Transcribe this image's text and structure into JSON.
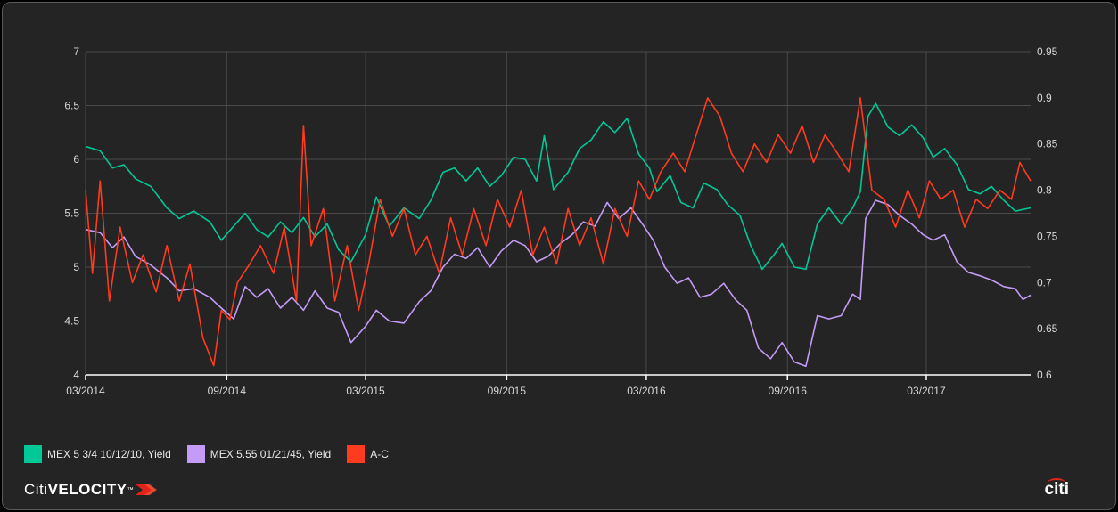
{
  "chart_data": {
    "type": "line",
    "x_ticks": [
      "03/2014",
      "09/2014",
      "03/2015",
      "09/2015",
      "03/2016",
      "09/2016",
      "03/2017"
    ],
    "x_range": [
      "2014-03-01",
      "2017-07-15"
    ],
    "y_left_ticks": [
      "4",
      "4.5",
      "5",
      "5.5",
      "6",
      "6.5",
      "7"
    ],
    "y_right_ticks": [
      "0.6",
      "0.65",
      "0.7",
      "0.75",
      "0.8",
      "0.85",
      "0.9",
      "0.95"
    ],
    "y_left_range": [
      4,
      7
    ],
    "y_right_range": [
      0.6,
      0.95
    ],
    "grid": true,
    "legend_position": "bottom-left",
    "series": [
      {
        "name": "MEX 5 3/4 10/12/10, Yield",
        "axis": "left",
        "color": "#00c896",
        "points": [
          [
            "2014-03-01",
            6.12
          ],
          [
            "2014-03-20",
            6.08
          ],
          [
            "2014-04-05",
            5.92
          ],
          [
            "2014-04-20",
            5.95
          ],
          [
            "2014-05-05",
            5.82
          ],
          [
            "2014-05-25",
            5.75
          ],
          [
            "2014-06-15",
            5.55
          ],
          [
            "2014-07-01",
            5.45
          ],
          [
            "2014-07-20",
            5.52
          ],
          [
            "2014-08-10",
            5.42
          ],
          [
            "2014-08-25",
            5.25
          ],
          [
            "2014-09-10",
            5.38
          ],
          [
            "2014-09-25",
            5.5
          ],
          [
            "2014-10-10",
            5.35
          ],
          [
            "2014-10-25",
            5.28
          ],
          [
            "2014-11-10",
            5.42
          ],
          [
            "2014-11-25",
            5.32
          ],
          [
            "2014-12-10",
            5.46
          ],
          [
            "2014-12-25",
            5.28
          ],
          [
            "2015-01-10",
            5.4
          ],
          [
            "2015-01-25",
            5.16
          ],
          [
            "2015-02-10",
            5.05
          ],
          [
            "2015-03-01",
            5.3
          ],
          [
            "2015-03-15",
            5.65
          ],
          [
            "2015-04-01",
            5.38
          ],
          [
            "2015-04-20",
            5.55
          ],
          [
            "2015-05-10",
            5.45
          ],
          [
            "2015-05-25",
            5.62
          ],
          [
            "2015-06-10",
            5.88
          ],
          [
            "2015-06-25",
            5.92
          ],
          [
            "2015-07-10",
            5.8
          ],
          [
            "2015-07-25",
            5.92
          ],
          [
            "2015-08-10",
            5.75
          ],
          [
            "2015-08-25",
            5.85
          ],
          [
            "2015-09-10",
            6.02
          ],
          [
            "2015-09-25",
            6.0
          ],
          [
            "2015-10-10",
            5.8
          ],
          [
            "2015-10-20",
            6.22
          ],
          [
            "2015-11-01",
            5.72
          ],
          [
            "2015-11-20",
            5.88
          ],
          [
            "2015-12-05",
            6.1
          ],
          [
            "2015-12-20",
            6.18
          ],
          [
            "2016-01-05",
            6.35
          ],
          [
            "2016-01-20",
            6.25
          ],
          [
            "2016-02-05",
            6.38
          ],
          [
            "2016-02-20",
            6.05
          ],
          [
            "2016-03-05",
            5.92
          ],
          [
            "2016-03-15",
            5.7
          ],
          [
            "2016-04-01",
            5.85
          ],
          [
            "2016-04-15",
            5.6
          ],
          [
            "2016-05-01",
            5.55
          ],
          [
            "2016-05-15",
            5.78
          ],
          [
            "2016-06-01",
            5.72
          ],
          [
            "2016-06-15",
            5.58
          ],
          [
            "2016-07-01",
            5.48
          ],
          [
            "2016-07-15",
            5.2
          ],
          [
            "2016-07-30",
            4.98
          ],
          [
            "2016-08-15",
            5.12
          ],
          [
            "2016-08-25",
            5.22
          ],
          [
            "2016-09-10",
            5.0
          ],
          [
            "2016-09-25",
            4.98
          ],
          [
            "2016-10-10",
            5.4
          ],
          [
            "2016-10-25",
            5.55
          ],
          [
            "2016-11-10",
            5.4
          ],
          [
            "2016-11-25",
            5.55
          ],
          [
            "2016-12-05",
            5.7
          ],
          [
            "2016-12-15",
            6.4
          ],
          [
            "2016-12-25",
            6.52
          ],
          [
            "2017-01-10",
            6.3
          ],
          [
            "2017-01-25",
            6.22
          ],
          [
            "2017-02-10",
            6.32
          ],
          [
            "2017-02-25",
            6.2
          ],
          [
            "2017-03-10",
            6.02
          ],
          [
            "2017-03-25",
            6.1
          ],
          [
            "2017-04-10",
            5.95
          ],
          [
            "2017-04-25",
            5.72
          ],
          [
            "2017-05-10",
            5.68
          ],
          [
            "2017-05-25",
            5.75
          ],
          [
            "2017-06-10",
            5.62
          ],
          [
            "2017-06-25",
            5.52
          ],
          [
            "2017-07-15",
            5.55
          ]
        ]
      },
      {
        "name": "MEX 5.55 01/21/45, Yield",
        "axis": "left",
        "color": "#c49bf5",
        "points": [
          [
            "2014-03-01",
            5.35
          ],
          [
            "2014-03-20",
            5.32
          ],
          [
            "2014-04-05",
            5.18
          ],
          [
            "2014-04-20",
            5.28
          ],
          [
            "2014-05-05",
            5.1
          ],
          [
            "2014-05-25",
            5.02
          ],
          [
            "2014-06-15",
            4.9
          ],
          [
            "2014-07-01",
            4.78
          ],
          [
            "2014-07-20",
            4.8
          ],
          [
            "2014-08-10",
            4.72
          ],
          [
            "2014-08-25",
            4.62
          ],
          [
            "2014-09-10",
            4.52
          ],
          [
            "2014-09-25",
            4.82
          ],
          [
            "2014-10-10",
            4.72
          ],
          [
            "2014-10-25",
            4.8
          ],
          [
            "2014-11-10",
            4.62
          ],
          [
            "2014-11-25",
            4.72
          ],
          [
            "2014-12-10",
            4.6
          ],
          [
            "2014-12-25",
            4.78
          ],
          [
            "2015-01-10",
            4.62
          ],
          [
            "2015-01-25",
            4.58
          ],
          [
            "2015-02-10",
            4.3
          ],
          [
            "2015-03-01",
            4.45
          ],
          [
            "2015-03-15",
            4.6
          ],
          [
            "2015-04-01",
            4.5
          ],
          [
            "2015-04-20",
            4.48
          ],
          [
            "2015-05-10",
            4.68
          ],
          [
            "2015-05-25",
            4.78
          ],
          [
            "2015-06-10",
            5.0
          ],
          [
            "2015-06-25",
            5.12
          ],
          [
            "2015-07-10",
            5.08
          ],
          [
            "2015-07-25",
            5.18
          ],
          [
            "2015-08-10",
            5.0
          ],
          [
            "2015-08-25",
            5.15
          ],
          [
            "2015-09-10",
            5.25
          ],
          [
            "2015-09-25",
            5.2
          ],
          [
            "2015-10-10",
            5.05
          ],
          [
            "2015-10-25",
            5.1
          ],
          [
            "2015-11-10",
            5.22
          ],
          [
            "2015-11-25",
            5.3
          ],
          [
            "2015-12-10",
            5.42
          ],
          [
            "2015-12-25",
            5.38
          ],
          [
            "2016-01-10",
            5.6
          ],
          [
            "2016-01-25",
            5.45
          ],
          [
            "2016-02-10",
            5.55
          ],
          [
            "2016-02-25",
            5.4
          ],
          [
            "2016-03-10",
            5.25
          ],
          [
            "2016-03-25",
            5.0
          ],
          [
            "2016-04-10",
            4.85
          ],
          [
            "2016-04-25",
            4.9
          ],
          [
            "2016-05-10",
            4.72
          ],
          [
            "2016-05-25",
            4.75
          ],
          [
            "2016-06-10",
            4.85
          ],
          [
            "2016-06-25",
            4.7
          ],
          [
            "2016-07-10",
            4.6
          ],
          [
            "2016-07-25",
            4.25
          ],
          [
            "2016-08-10",
            4.15
          ],
          [
            "2016-08-25",
            4.3
          ],
          [
            "2016-09-10",
            4.12
          ],
          [
            "2016-09-25",
            4.08
          ],
          [
            "2016-10-10",
            4.55
          ],
          [
            "2016-10-25",
            4.52
          ],
          [
            "2016-11-10",
            4.55
          ],
          [
            "2016-11-25",
            4.75
          ],
          [
            "2016-12-05",
            4.7
          ],
          [
            "2016-12-12",
            5.45
          ],
          [
            "2016-12-25",
            5.62
          ],
          [
            "2017-01-10",
            5.58
          ],
          [
            "2017-01-25",
            5.48
          ],
          [
            "2017-02-10",
            5.4
          ],
          [
            "2017-02-25",
            5.3
          ],
          [
            "2017-03-10",
            5.25
          ],
          [
            "2017-03-25",
            5.3
          ],
          [
            "2017-04-10",
            5.05
          ],
          [
            "2017-04-25",
            4.95
          ],
          [
            "2017-05-10",
            4.92
          ],
          [
            "2017-05-25",
            4.88
          ],
          [
            "2017-06-10",
            4.82
          ],
          [
            "2017-06-25",
            4.8
          ],
          [
            "2017-07-05",
            4.7
          ],
          [
            "2017-07-15",
            4.74
          ]
        ]
      },
      {
        "name": "A-C",
        "axis": "right",
        "color": "#ff3b1f",
        "points": [
          [
            "2014-03-01",
            0.8
          ],
          [
            "2014-03-10",
            0.71
          ],
          [
            "2014-03-20",
            0.81
          ],
          [
            "2014-04-01",
            0.68
          ],
          [
            "2014-04-15",
            0.76
          ],
          [
            "2014-05-01",
            0.7
          ],
          [
            "2014-05-15",
            0.73
          ],
          [
            "2014-06-01",
            0.69
          ],
          [
            "2014-06-15",
            0.74
          ],
          [
            "2014-07-01",
            0.68
          ],
          [
            "2014-07-15",
            0.72
          ],
          [
            "2014-08-01",
            0.64
          ],
          [
            "2014-08-15",
            0.61
          ],
          [
            "2014-08-25",
            0.67
          ],
          [
            "2014-09-05",
            0.66
          ],
          [
            "2014-09-15",
            0.7
          ],
          [
            "2014-10-01",
            0.72
          ],
          [
            "2014-10-15",
            0.74
          ],
          [
            "2014-11-01",
            0.71
          ],
          [
            "2014-11-15",
            0.76
          ],
          [
            "2014-12-01",
            0.68
          ],
          [
            "2014-12-10",
            0.87
          ],
          [
            "2014-12-20",
            0.74
          ],
          [
            "2015-01-05",
            0.78
          ],
          [
            "2015-01-20",
            0.68
          ],
          [
            "2015-02-05",
            0.74
          ],
          [
            "2015-02-20",
            0.67
          ],
          [
            "2015-03-05",
            0.72
          ],
          [
            "2015-03-20",
            0.79
          ],
          [
            "2015-04-05",
            0.75
          ],
          [
            "2015-04-20",
            0.78
          ],
          [
            "2015-05-05",
            0.73
          ],
          [
            "2015-05-20",
            0.75
          ],
          [
            "2015-06-05",
            0.71
          ],
          [
            "2015-06-20",
            0.77
          ],
          [
            "2015-07-05",
            0.73
          ],
          [
            "2015-07-20",
            0.78
          ],
          [
            "2015-08-05",
            0.74
          ],
          [
            "2015-08-20",
            0.79
          ],
          [
            "2015-09-05",
            0.76
          ],
          [
            "2015-09-20",
            0.8
          ],
          [
            "2015-10-05",
            0.73
          ],
          [
            "2015-10-20",
            0.76
          ],
          [
            "2015-11-05",
            0.72
          ],
          [
            "2015-11-20",
            0.78
          ],
          [
            "2015-12-05",
            0.74
          ],
          [
            "2015-12-20",
            0.77
          ],
          [
            "2016-01-05",
            0.72
          ],
          [
            "2016-01-20",
            0.78
          ],
          [
            "2016-02-05",
            0.75
          ],
          [
            "2016-02-20",
            0.81
          ],
          [
            "2016-03-05",
            0.79
          ],
          [
            "2016-03-20",
            0.82
          ],
          [
            "2016-04-05",
            0.84
          ],
          [
            "2016-04-20",
            0.82
          ],
          [
            "2016-05-05",
            0.86
          ],
          [
            "2016-05-20",
            0.9
          ],
          [
            "2016-06-05",
            0.88
          ],
          [
            "2016-06-20",
            0.84
          ],
          [
            "2016-07-05",
            0.82
          ],
          [
            "2016-07-20",
            0.85
          ],
          [
            "2016-08-05",
            0.83
          ],
          [
            "2016-08-20",
            0.86
          ],
          [
            "2016-09-05",
            0.84
          ],
          [
            "2016-09-20",
            0.87
          ],
          [
            "2016-10-05",
            0.83
          ],
          [
            "2016-10-20",
            0.86
          ],
          [
            "2016-11-05",
            0.84
          ],
          [
            "2016-11-20",
            0.82
          ],
          [
            "2016-12-05",
            0.9
          ],
          [
            "2016-12-20",
            0.8
          ],
          [
            "2017-01-05",
            0.79
          ],
          [
            "2017-01-20",
            0.76
          ],
          [
            "2017-02-05",
            0.8
          ],
          [
            "2017-02-20",
            0.77
          ],
          [
            "2017-03-05",
            0.81
          ],
          [
            "2017-03-20",
            0.79
          ],
          [
            "2017-04-05",
            0.8
          ],
          [
            "2017-04-20",
            0.76
          ],
          [
            "2017-05-05",
            0.79
          ],
          [
            "2017-05-20",
            0.78
          ],
          [
            "2017-06-05",
            0.8
          ],
          [
            "2017-06-20",
            0.79
          ],
          [
            "2017-07-01",
            0.83
          ],
          [
            "2017-07-15",
            0.81
          ]
        ]
      }
    ]
  },
  "legend": {
    "items": [
      {
        "label": "MEX 5 3/4 10/12/10, Yield",
        "color": "#00c896"
      },
      {
        "label": "MEX 5.55 01/21/45, Yield",
        "color": "#c49bf5"
      },
      {
        "label": "A-C",
        "color": "#ff3b1f"
      }
    ]
  },
  "branding": {
    "left_logo_part1": "Citi",
    "left_logo_part2": "VELOCITY",
    "left_logo_tm": "™",
    "right_logo": "citi",
    "accent_color": "#e2231a"
  },
  "colors": {
    "background": "#242424",
    "grid": "#4a4a4a",
    "axis": "#ffffff",
    "text": "#d8d8d8"
  }
}
